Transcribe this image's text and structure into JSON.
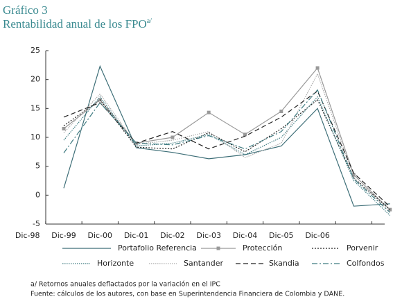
{
  "chart_data": {
    "type": "line",
    "title": "Gráfico 3",
    "subtitle": "Rentabilidad anual de los FPO",
    "subtitle_superscript": "a/",
    "categories": [
      "Dic-98",
      "Dic-99",
      "Dic-00",
      "Dic-01",
      "Dic-02",
      "Dic-03",
      "Dic-04",
      "Dic-05",
      "Dic-06",
      null
    ],
    "series": [
      {
        "name": "Portafolio Referencia",
        "color": "#3d6e77",
        "dash": "none",
        "values": [
          1.2,
          22.3,
          8.2,
          7.4,
          6.3,
          7.0,
          8.5,
          15.0,
          -1.9,
          -1.5
        ]
      },
      {
        "name": "Protección",
        "color": "#999999",
        "dash": "none",
        "marker": "square",
        "values": [
          11.5,
          16.5,
          9.0,
          10.0,
          14.3,
          10.5,
          14.5,
          22.0,
          3.5,
          -2.5
        ]
      },
      {
        "name": "Porvenir",
        "color": "#222222",
        "dash": "2,2",
        "values": [
          12.0,
          16.5,
          8.3,
          8.0,
          10.8,
          7.5,
          11.5,
          16.5,
          3.0,
          -2.5
        ]
      },
      {
        "name": "Horizonte",
        "color": "#3d7a80",
        "dash": "1.5,1.5",
        "values": [
          9.5,
          17.0,
          8.5,
          9.0,
          10.5,
          7.0,
          10.0,
          17.0,
          2.5,
          -3.5
        ]
      },
      {
        "name": "Santander",
        "color": "#aaaaaa",
        "dash": "1.5,1.5",
        "values": [
          10.8,
          17.5,
          8.8,
          9.5,
          11.0,
          6.5,
          9.0,
          21.0,
          3.0,
          -2.8
        ]
      },
      {
        "name": "Skandia",
        "color": "#222222",
        "dash": "7,4",
        "values": [
          13.5,
          16.0,
          9.0,
          11.0,
          8.0,
          10.2,
          13.5,
          18.0,
          3.8,
          -2.0
        ]
      },
      {
        "name": "Colfondos",
        "color": "#3d7a80",
        "dash": "8,3,2,3",
        "values": [
          7.3,
          16.0,
          9.0,
          8.7,
          10.3,
          8.0,
          11.0,
          18.2,
          2.8,
          -3.0
        ]
      }
    ],
    "ylim": [
      -5,
      25
    ],
    "yticks": [
      -5,
      0,
      5,
      10,
      15,
      20,
      25
    ],
    "notes": [
      "a/ Retornos anuales deflactados por la variación en el IPC",
      "Fuente: cálculos de los autores, con base en Superintendencia Financiera de Colombia y DANE."
    ]
  }
}
